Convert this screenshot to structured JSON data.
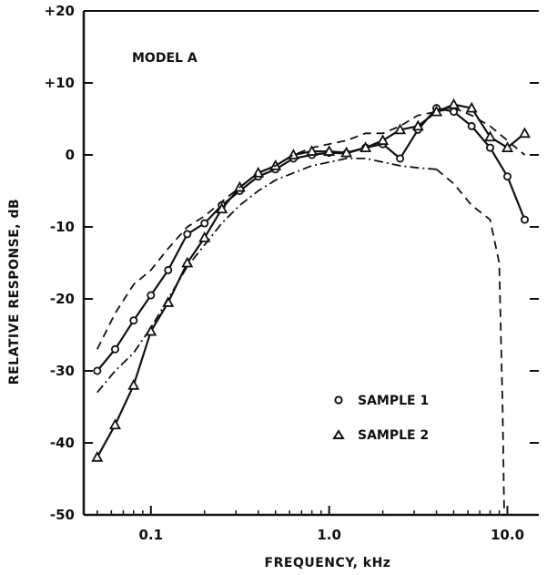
{
  "chart_data": {
    "type": "line",
    "title": "",
    "annotation": "MODEL A",
    "xlabel": "FREQUENCY, kHz",
    "ylabel": "RELATIVE RESPONSE, dB",
    "x_scale": "log",
    "xlim": [
      0.042,
      15
    ],
    "ylim": [
      -50,
      20
    ],
    "x_ticks": [
      0.1,
      1.0,
      10.0
    ],
    "x_tick_labels": [
      "0.1",
      "1.0",
      "10.0"
    ],
    "y_ticks": [
      20,
      10,
      0,
      -10,
      -20,
      -30,
      -40,
      -50
    ],
    "y_tick_labels": [
      "+20",
      "+10",
      "0",
      "-10",
      "-20",
      "-30",
      "-40",
      "-50"
    ],
    "grid": false,
    "legend_position": "bottom-right",
    "series": [
      {
        "name": "SAMPLE 1",
        "marker": "circle",
        "line": "solid",
        "x": [
          0.05,
          0.063,
          0.08,
          0.1,
          0.125,
          0.16,
          0.2,
          0.25,
          0.315,
          0.4,
          0.5,
          0.63,
          0.8,
          1.0,
          1.25,
          1.6,
          2.0,
          2.5,
          3.15,
          4.0,
          5.0,
          6.3,
          8.0,
          10.0,
          12.5
        ],
        "y": [
          -30,
          -27,
          -23,
          -19.5,
          -16,
          -11,
          -9.5,
          -7,
          -5,
          -3,
          -2,
          -0.5,
          0,
          0.3,
          0.2,
          1,
          1.5,
          -0.5,
          3.5,
          6.5,
          6,
          4,
          1,
          -3,
          -9
        ]
      },
      {
        "name": "SAMPLE 2",
        "marker": "triangle",
        "line": "solid",
        "x": [
          0.05,
          0.063,
          0.08,
          0.1,
          0.125,
          0.16,
          0.2,
          0.25,
          0.315,
          0.4,
          0.5,
          0.63,
          0.8,
          1.0,
          1.25,
          1.6,
          2.0,
          2.5,
          3.15,
          4.0,
          5.0,
          6.3,
          8.0,
          10.0,
          12.5
        ],
        "y": [
          -42,
          -37.5,
          -32,
          -24.5,
          -20.5,
          -15,
          -11.5,
          -7.5,
          -4.5,
          -2.5,
          -1.5,
          0,
          0.5,
          0.5,
          0.3,
          1,
          2,
          3.5,
          4,
          6,
          7,
          6.5,
          2.5,
          1,
          3
        ]
      },
      {
        "line": "dashed",
        "x": [
          0.05,
          0.063,
          0.08,
          0.1,
          0.125,
          0.16,
          0.2,
          0.25,
          0.315,
          0.4,
          0.5,
          0.63,
          0.8,
          1.0,
          1.25,
          1.6,
          2.0,
          2.5,
          3.15,
          4.0,
          5.0,
          6.3,
          8.0,
          10.0,
          12.5
        ],
        "y": [
          -27,
          -22,
          -18,
          -16,
          -13,
          -10,
          -8.5,
          -6.5,
          -4.5,
          -2.5,
          -1.5,
          0,
          1,
          1.5,
          2,
          3,
          3,
          4,
          5.5,
          6,
          6.5,
          5.5,
          4,
          2,
          0
        ]
      },
      {
        "line": "dash-dot",
        "x": [
          0.05,
          0.063,
          0.08,
          0.1,
          0.125,
          0.16,
          0.2,
          0.25,
          0.315,
          0.4,
          0.5,
          0.63,
          0.8,
          1.0,
          1.25,
          1.6,
          2.0,
          2.5,
          3.15,
          4.0
        ],
        "y": [
          -33,
          -30,
          -27.5,
          -24,
          -20,
          -15.5,
          -12.5,
          -9.5,
          -7,
          -5,
          -3.5,
          -2.5,
          -1.5,
          -1,
          -0.5,
          -0.5,
          -1,
          -1.5,
          -1.8,
          -2
        ]
      },
      {
        "line": "dashed",
        "x": [
          4.0,
          5.0,
          6.3,
          8.0,
          9.0,
          9.4,
          9.6
        ],
        "y": [
          -2,
          -4,
          -7,
          -9,
          -15,
          -35,
          -50
        ]
      }
    ],
    "legend": [
      {
        "label": "SAMPLE 1",
        "marker": "circle"
      },
      {
        "label": "SAMPLE 2",
        "marker": "triangle"
      }
    ]
  }
}
